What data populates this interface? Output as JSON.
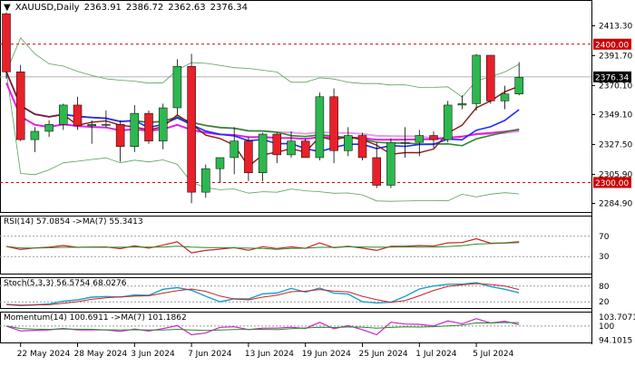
{
  "header": {
    "symbol": "XAUUSD,Daily",
    "open": "2363.91",
    "high": "2386.72",
    "low": "2362.63",
    "close": "2376.34"
  },
  "indicators": {
    "rsi": {
      "label": "RSI(14) 57.0854 ->MA(7) 55.3413",
      "levels": [
        70,
        30
      ]
    },
    "stoch": {
      "label": "Stoch(5,3,3) 56.5754 68.0276",
      "levels": [
        80,
        20
      ]
    },
    "momentum": {
      "label": "Momentum(14) 100.6911 ->MA(7) 101.1862",
      "levels": [
        103.7071,
        100,
        94.1015
      ]
    }
  },
  "price_axis": {
    "ticks": [
      "2413.30",
      "2391.70",
      "2370.10",
      "2349.10",
      "2327.50",
      "2305.90",
      "2284.90"
    ],
    "current": "2376.34",
    "resistance": "2400.00",
    "support": "2300.00"
  },
  "date_axis": [
    "22 May 2024",
    "28 May 2024",
    "3 Jun 2024",
    "7 Jun 2024",
    "13 Jun 2024",
    "19 Jun 2024",
    "25 Jun 2024",
    "1 Jul 2024",
    "5 Jul 2024"
  ],
  "colors": {
    "bull": "#2db84f",
    "bear": "#e8202a",
    "hline": "#cc0000",
    "ma_fast": "#8b1a1a",
    "ma_blue": "#1f2bff",
    "ma_green": "#2a8a2a",
    "ma_magenta": "#e020e0",
    "ma_pink": "#e89ce8",
    "bollinger": "#5aa05a",
    "rsi_line": "#cc2222",
    "rsi_ma": "#2a8a2a",
    "stoch_k": "#1aa0c8",
    "stoch_d": "#cc2222",
    "mom_line": "#cc22cc",
    "mom_ma": "#2a8a2a"
  },
  "chart_data": {
    "type": "candlestick",
    "x": [
      "21 May",
      "22 May",
      "23 May",
      "24 May",
      "27 May",
      "28 May",
      "29 May",
      "30 May",
      "31 May",
      "3 Jun",
      "4 Jun",
      "5 Jun",
      "6 Jun",
      "7 Jun",
      "10 Jun",
      "11 Jun",
      "12 Jun",
      "13 Jun",
      "14 Jun",
      "17 Jun",
      "18 Jun",
      "19 Jun",
      "20 Jun",
      "21 Jun",
      "24 Jun",
      "25 Jun",
      "26 Jun",
      "27 Jun",
      "28 Jun",
      "1 Jul",
      "2 Jul",
      "3 Jul",
      "4 Jul",
      "5 Jul",
      "8 Jul",
      "9 Jul",
      "10 Jul"
    ],
    "series": [
      {
        "name": "XAUUSD",
        "ohlc": [
          [
            2422,
            2423,
            2375,
            2380
          ],
          [
            2380,
            2385,
            2330,
            2331
          ],
          [
            2331,
            2340,
            2322,
            2337
          ],
          [
            2337,
            2345,
            2333,
            2342
          ],
          [
            2342,
            2357,
            2338,
            2356
          ],
          [
            2356,
            2362,
            2338,
            2341
          ],
          [
            2341,
            2345,
            2328,
            2342
          ],
          [
            2342,
            2352,
            2340,
            2342
          ],
          [
            2342,
            2345,
            2315,
            2326
          ],
          [
            2326,
            2356,
            2322,
            2350
          ],
          [
            2350,
            2352,
            2328,
            2330
          ],
          [
            2330,
            2357,
            2324,
            2354
          ],
          [
            2354,
            2389,
            2349,
            2384
          ],
          [
            2384,
            2393,
            2285,
            2293
          ],
          [
            2293,
            2313,
            2289,
            2310
          ],
          [
            2310,
            2318,
            2300,
            2318
          ],
          [
            2318,
            2340,
            2306,
            2330
          ],
          [
            2330,
            2333,
            2301,
            2307
          ],
          [
            2307,
            2336,
            2301,
            2335
          ],
          [
            2335,
            2336,
            2314,
            2320
          ],
          [
            2320,
            2337,
            2318,
            2330
          ],
          [
            2330,
            2332,
            2318,
            2318
          ],
          [
            2318,
            2365,
            2316,
            2362
          ],
          [
            2362,
            2368,
            2314,
            2323
          ],
          [
            2323,
            2340,
            2319,
            2334
          ],
          [
            2334,
            2336,
            2316,
            2318
          ],
          [
            2318,
            2329,
            2296,
            2298
          ],
          [
            2298,
            2332,
            2296,
            2329
          ],
          [
            2329,
            2340,
            2318,
            2329
          ],
          [
            2329,
            2338,
            2319,
            2334
          ],
          [
            2334,
            2337,
            2325,
            2331
          ],
          [
            2331,
            2359,
            2329,
            2356
          ],
          [
            2356,
            2363,
            2353,
            2357
          ],
          [
            2357,
            2393,
            2352,
            2392
          ],
          [
            2392,
            2392,
            2357,
            2359
          ],
          [
            2359,
            2370,
            2353,
            2364
          ],
          [
            2364,
            2387,
            2363,
            2376
          ]
        ]
      }
    ],
    "xlabel": "",
    "ylabel": "",
    "ylim": [
      2280,
      2428
    ]
  }
}
